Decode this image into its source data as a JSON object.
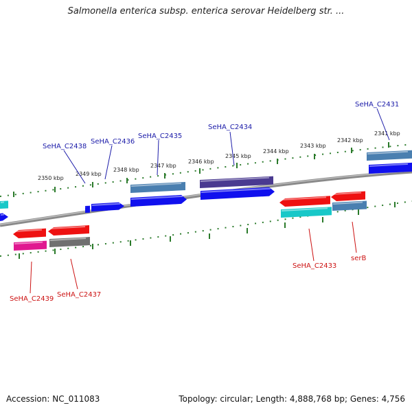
{
  "title": "Salmonella enterica subsp. enterica serovar Heidelberg str. ...",
  "footer": {
    "accession": "Accession: NC_011083",
    "summary": "Topology: circular; Length: 4,888,768 bp; Genes: 4,756"
  },
  "colors": {
    "forward_label": "#1a1aa8",
    "reverse_label": "#cc1111",
    "tick": "#2a7a2a",
    "backbone": "#7a7a7a",
    "blue": "#1010ee",
    "steelblue": "#4a7fb0",
    "purple": "#4a3a90",
    "red": "#ee1111",
    "cyan": "#18c8c8",
    "magenta": "#e01890",
    "gray": "#707070"
  },
  "ruler_ticks": [
    "2350 kbp",
    "2349 kbp",
    "2348 kbp",
    "2347 kbp",
    "2346 kbp",
    "2345 kbp",
    "2344 kbp",
    "2343 kbp",
    "2342 kbp",
    "2341 kbp"
  ],
  "genes_forward": [
    {
      "label": "SeHA_C2431"
    },
    {
      "label": "SeHA_C2434"
    },
    {
      "label": "SeHA_C2435"
    },
    {
      "label": "SeHA_C2436"
    },
    {
      "label": "SeHA_C2438"
    }
  ],
  "genes_reverse": [
    {
      "label": "SeHA_C2433"
    },
    {
      "label": "serB"
    },
    {
      "label": "SeHA_C2437"
    },
    {
      "label": "SeHA_C2439"
    }
  ]
}
